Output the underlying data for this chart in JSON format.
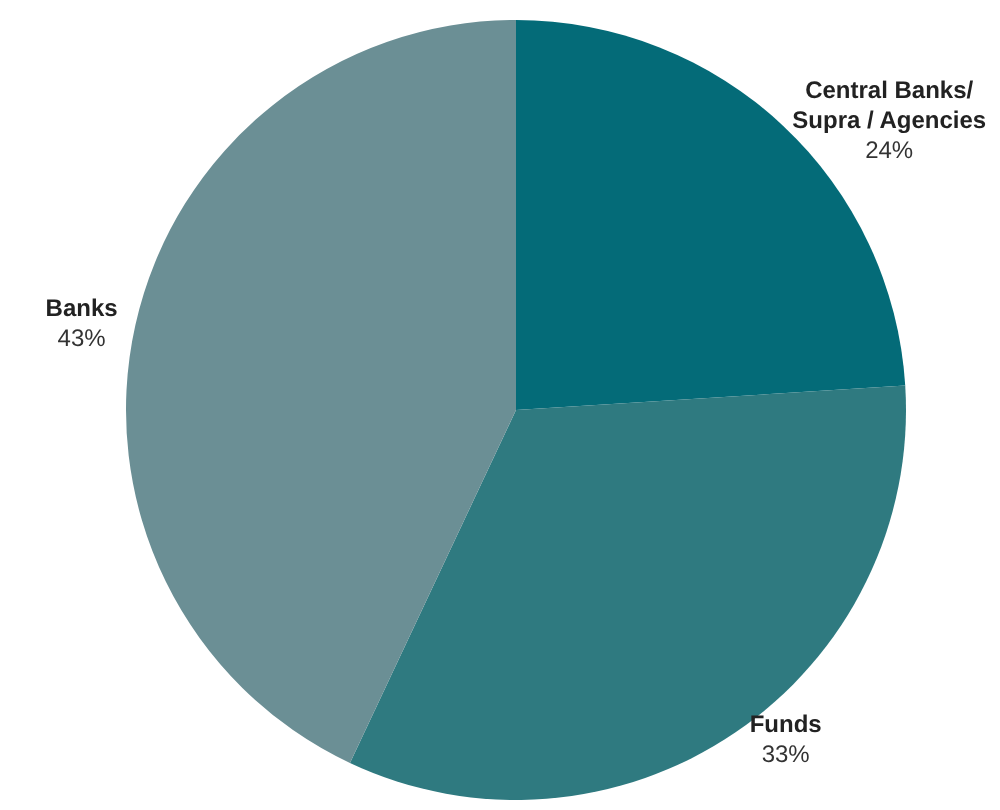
{
  "chart_data": {
    "type": "pie",
    "categories": [
      "Central Banks/\nSupra / Agencies",
      "Funds",
      "Banks"
    ],
    "values": [
      24,
      33,
      43
    ],
    "colors": [
      "#046b78",
      "#2f7a80",
      "#6b8f95"
    ],
    "value_labels": [
      "24%",
      "33%",
      "43%"
    ],
    "legend": false
  }
}
